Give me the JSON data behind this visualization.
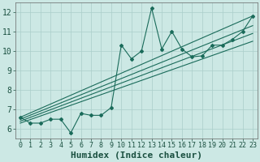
{
  "title": "",
  "xlabel": "Humidex (Indice chaleur)",
  "x_data": [
    0,
    1,
    2,
    3,
    4,
    5,
    6,
    7,
    8,
    9,
    10,
    11,
    12,
    13,
    14,
    15,
    16,
    17,
    18,
    19,
    20,
    21,
    22,
    23
  ],
  "y_scatter": [
    6.6,
    6.3,
    6.3,
    6.5,
    6.5,
    5.8,
    6.8,
    6.7,
    6.7,
    7.1,
    10.3,
    9.6,
    10.0,
    12.2,
    10.1,
    11.0,
    10.1,
    9.7,
    9.75,
    10.3,
    10.3,
    10.6,
    11.0,
    11.8
  ],
  "line1": [
    [
      0,
      6.6
    ],
    [
      23,
      11.8
    ]
  ],
  "line2": [
    [
      0,
      6.5
    ],
    [
      23,
      11.3
    ]
  ],
  "line3": [
    [
      0,
      6.4
    ],
    [
      23,
      10.9
    ]
  ],
  "line4": [
    [
      0,
      6.3
    ],
    [
      23,
      10.5
    ]
  ],
  "ylim": [
    5.5,
    12.5
  ],
  "xlim": [
    -0.5,
    23.5
  ],
  "bg_color": "#cce8e4",
  "line_color": "#1a6b5a",
  "grid_color": "#aaceca",
  "axis_label_fontsize": 7,
  "tick_fontsize": 6
}
